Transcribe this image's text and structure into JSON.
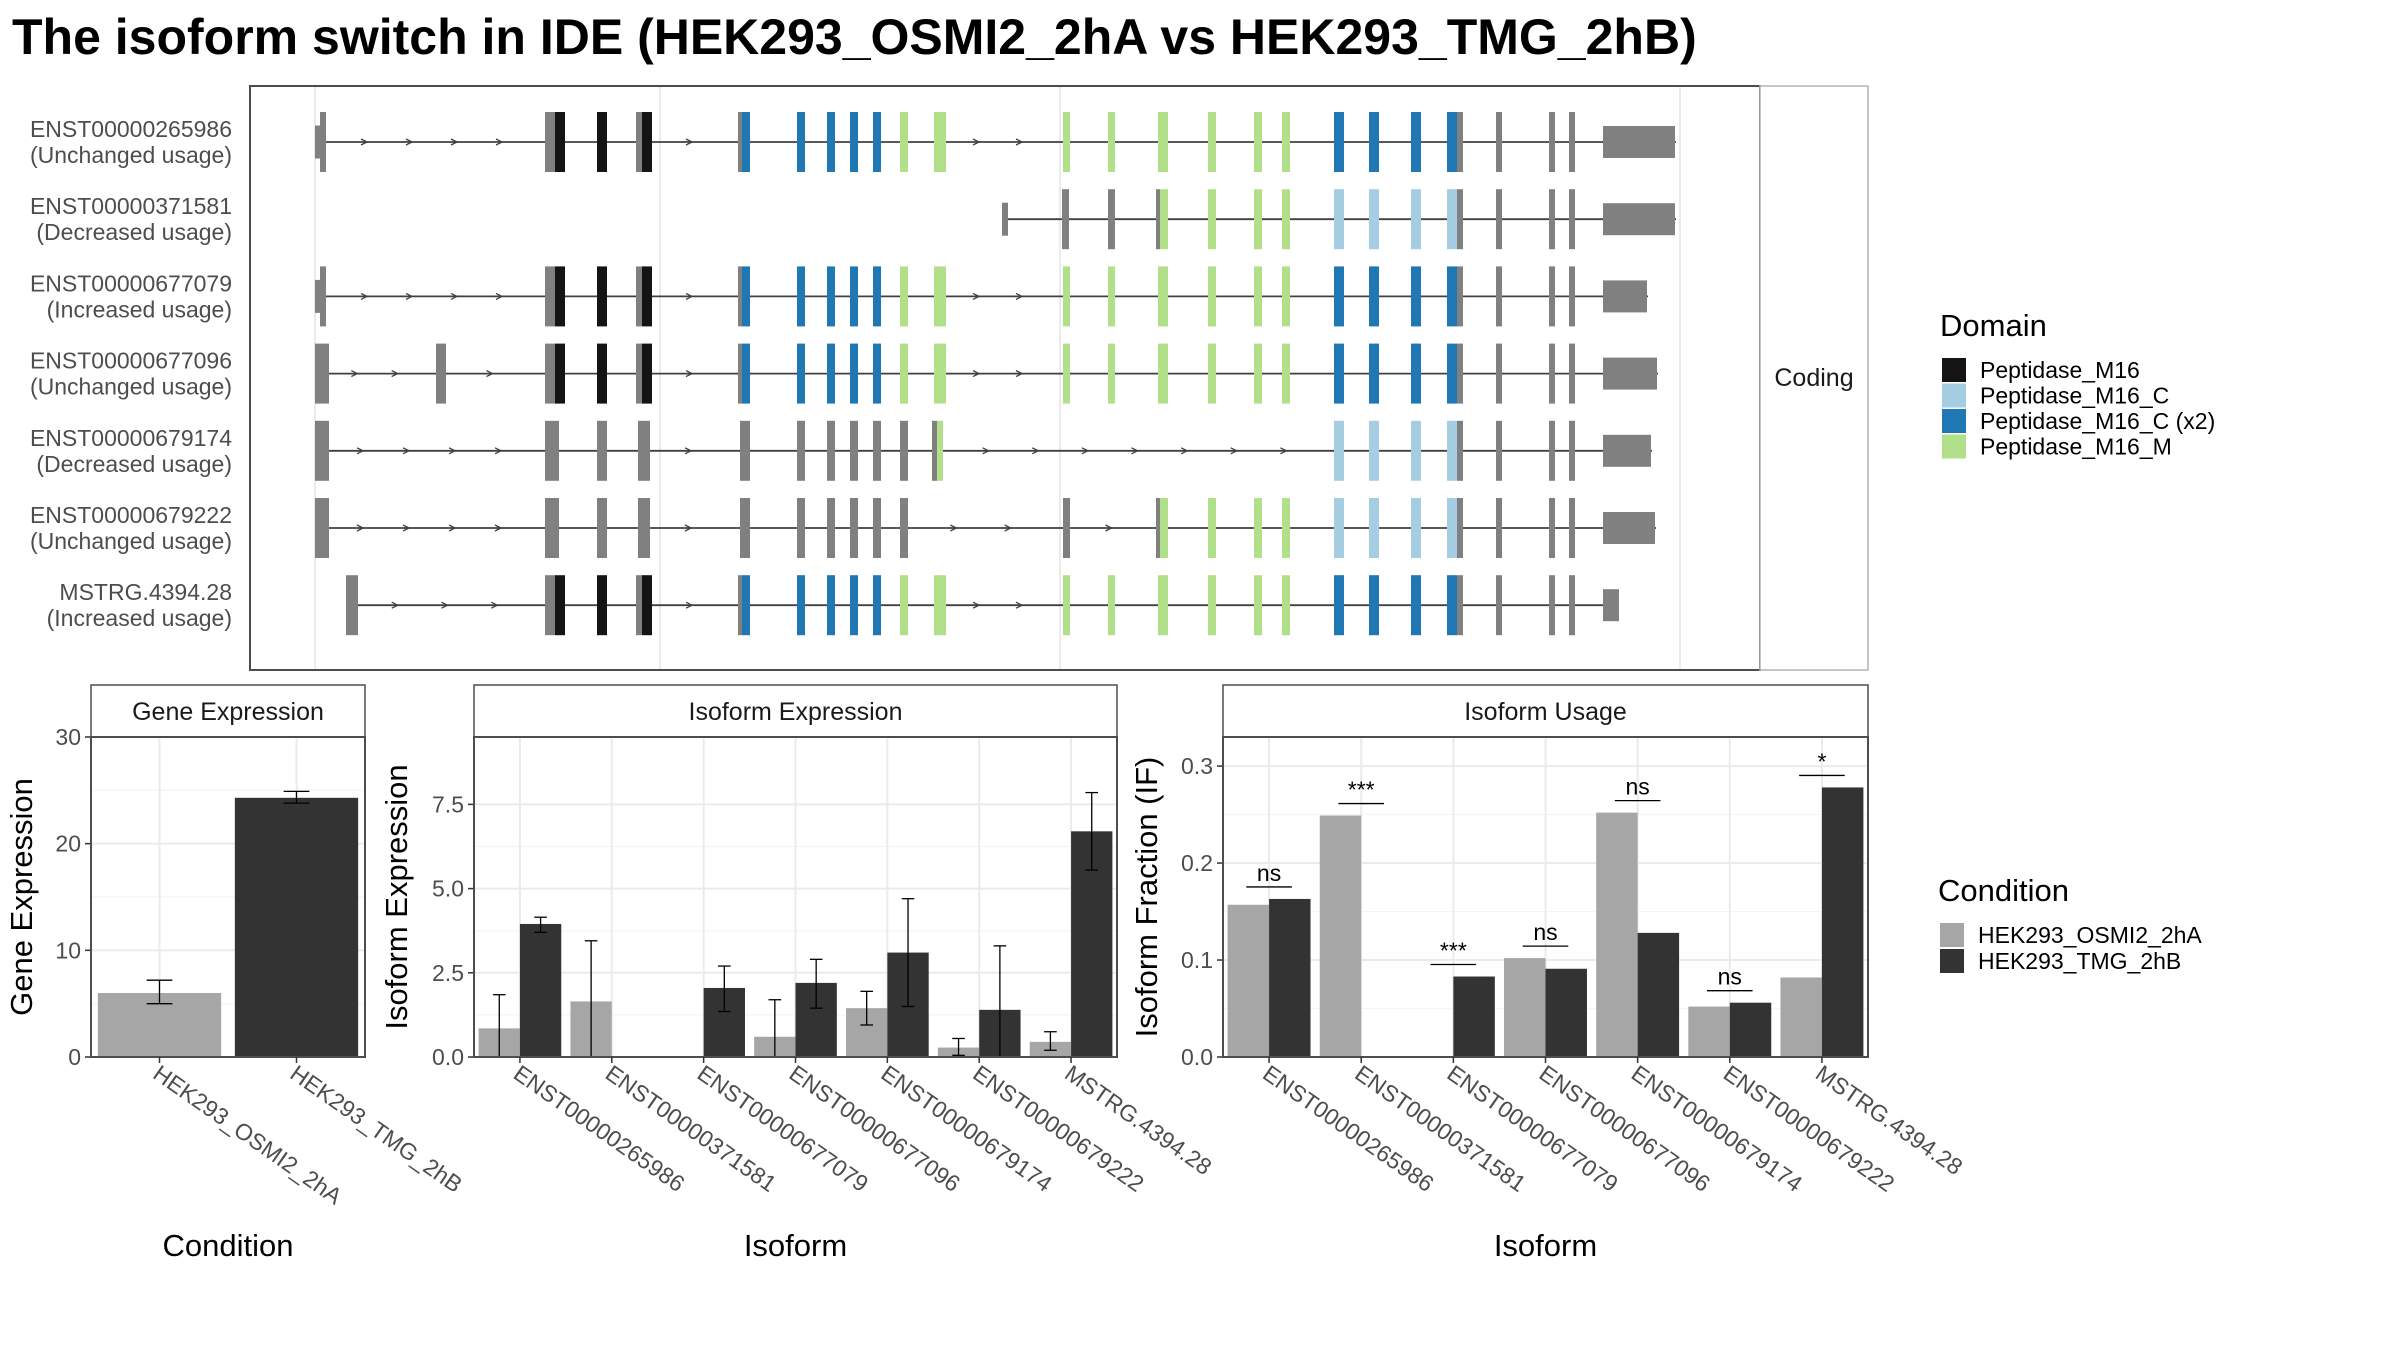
{
  "title": "The isoform switch in IDE (HEK293_OSMI2_2hA vs HEK293_TMG_2hB)",
  "colors": {
    "exon": "#808080",
    "intron": "#404040",
    "panel_border": "#4d4d4d",
    "grid": "#ebebeb",
    "strip_fill": "#ffffff",
    "cond_a": "#a6a6a6",
    "cond_b": "#333333"
  },
  "structure": {
    "facet_label": "Coding",
    "legend_title": "Domain",
    "domains": [
      {
        "name": "Peptidase_M16",
        "color": "#141414"
      },
      {
        "name": "Peptidase_M16_C",
        "color": "#a6cee3"
      },
      {
        "name": "Peptidase_M16_C (x2)",
        "color": "#1f78b4"
      },
      {
        "name": "Peptidase_M16_M",
        "color": "#b2df8a"
      }
    ],
    "transcripts": [
      {
        "id": "ENST00000265986",
        "usage": "(Unchanged usage)"
      },
      {
        "id": "ENST00000371581",
        "usage": "(Decreased usage)"
      },
      {
        "id": "ENST00000677079",
        "usage": "(Increased usage)"
      },
      {
        "id": "ENST00000677096",
        "usage": "(Unchanged usage)"
      },
      {
        "id": "ENST00000679174",
        "usage": "(Decreased usage)"
      },
      {
        "id": "ENST00000679222",
        "usage": "(Unchanged usage)"
      },
      {
        "id": "MSTRG.4394.28",
        "usage": "(Increased usage)"
      }
    ]
  },
  "condition_legend": {
    "title": "Condition",
    "items": [
      "HEK293_OSMI2_2hA",
      "HEK293_TMG_2hB"
    ]
  },
  "chart_data": [
    {
      "type": "bar",
      "title": "Gene Expression",
      "xlabel": "Condition",
      "ylabel": "Gene Expression",
      "ylim": [
        0,
        30
      ],
      "yticks": [
        "0",
        "10",
        "20",
        "30"
      ],
      "yticks_num": [
        0,
        10,
        20,
        30
      ],
      "categories": [
        "HEK293_OSMI2_2hA",
        "HEK293_TMG_2hB"
      ],
      "values": [
        6.0,
        24.3
      ],
      "errors": [
        [
          5.0,
          7.2
        ],
        [
          23.8,
          24.9
        ]
      ]
    },
    {
      "type": "bar",
      "title": "Isoform Expression",
      "xlabel": "Isoform",
      "ylabel": "Isoform Expression",
      "ylim": [
        0,
        9.5
      ],
      "yticks": [
        "0.0",
        "2.5",
        "5.0",
        "7.5"
      ],
      "yticks_num": [
        0,
        2.5,
        5,
        7.5
      ],
      "categories": [
        "ENST00000265986",
        "ENST00000371581",
        "ENST00000677079",
        "ENST00000677096",
        "ENST00000679174",
        "ENST00000679222",
        "MSTRG.4394.28"
      ],
      "series": [
        {
          "name": "HEK293_OSMI2_2hA",
          "values": [
            0.85,
            1.65,
            0.0,
            0.6,
            1.45,
            0.28,
            0.45
          ],
          "errors": [
            [
              0.0,
              1.85
            ],
            [
              0.0,
              3.45
            ],
            [
              0.0,
              0.0
            ],
            [
              0.0,
              1.7
            ],
            [
              0.95,
              1.95
            ],
            [
              0.05,
              0.55
            ],
            [
              0.2,
              0.75
            ]
          ]
        },
        {
          "name": "HEK293_TMG_2hB",
          "values": [
            3.95,
            0.0,
            2.05,
            2.2,
            3.1,
            1.4,
            6.7
          ],
          "errors": [
            [
              3.7,
              4.15
            ],
            [
              0.0,
              0.0
            ],
            [
              1.35,
              2.7
            ],
            [
              1.45,
              2.9
            ],
            [
              1.5,
              4.7
            ],
            [
              0.0,
              3.3
            ],
            [
              5.55,
              7.85
            ]
          ]
        }
      ]
    },
    {
      "type": "bar",
      "title": "Isoform Usage",
      "xlabel": "Isoform",
      "ylabel": "Isoform Fraction (IF)",
      "ylim": [
        0,
        0.33
      ],
      "yticks": [
        "0.0",
        "0.1",
        "0.2",
        "0.3"
      ],
      "yticks_num": [
        0,
        0.1,
        0.2,
        0.3
      ],
      "categories": [
        "ENST00000265986",
        "ENST00000371581",
        "ENST00000677079",
        "ENST00000677096",
        "ENST00000679174",
        "ENST00000679222",
        "MSTRG.4394.28"
      ],
      "series": [
        {
          "name": "HEK293_OSMI2_2hA",
          "values": [
            0.157,
            0.249,
            0.0,
            0.102,
            0.252,
            0.052,
            0.082
          ]
        },
        {
          "name": "HEK293_TMG_2hB",
          "values": [
            0.163,
            0.0,
            0.083,
            0.091,
            0.128,
            0.056,
            0.278
          ]
        }
      ],
      "significance": [
        "ns",
        "***",
        "***",
        "ns",
        "ns",
        "ns",
        "*"
      ]
    }
  ]
}
